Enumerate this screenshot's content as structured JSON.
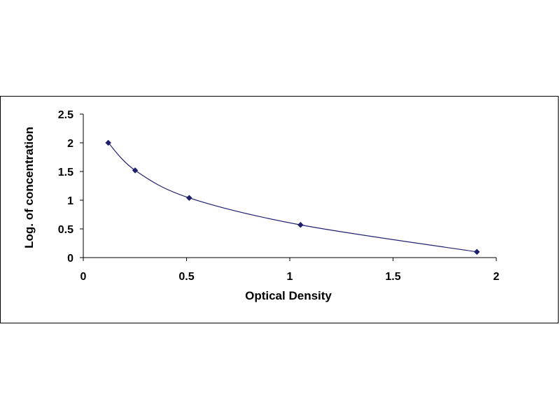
{
  "chart_data": {
    "type": "scatter",
    "xlabel": "Optical Density",
    "ylabel": "Log. of concentration",
    "xlim": [
      0,
      2
    ],
    "ylim": [
      0,
      2.5
    ],
    "x_ticks": [
      "0",
      "0.5",
      "1",
      "1.5",
      "2"
    ],
    "y_ticks": [
      "0",
      "0.5",
      "1",
      "1.5",
      "2",
      "2.5"
    ],
    "grid": false,
    "legend": "none",
    "trendline": "smooth curve through points",
    "series": [
      {
        "x": [
          0.121,
          0.251,
          0.513,
          1.052,
          1.906
        ],
        "y": [
          2.0,
          1.52,
          1.04,
          0.57,
          0.1
        ],
        "marker": "diamond",
        "color": "#1f1f6e"
      }
    ]
  }
}
